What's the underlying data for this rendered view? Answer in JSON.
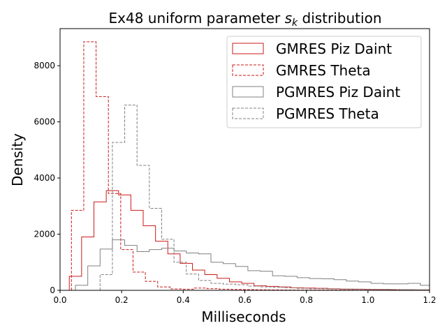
{
  "chart_data": {
    "type": "histogram-step",
    "title_text": "Ex48 uniform parameter ",
    "title_symbol": "s",
    "title_subscript": "k",
    "title_suffix": " distribution",
    "xlabel": "Milliseconds",
    "ylabel": "Density",
    "xlim": [
      0,
      1.2
    ],
    "ylim": [
      0,
      9320
    ],
    "xticks": [
      0.0,
      0.2,
      0.4,
      0.6,
      0.8,
      1.0,
      1.2
    ],
    "xtick_labels": [
      "0.0",
      "0.2",
      "0.4",
      "0.6",
      "0.8",
      "1.0",
      "1.2"
    ],
    "yticks": [
      0,
      2000,
      4000,
      6000,
      8000
    ],
    "ytick_labels": [
      "0",
      "2000",
      "4000",
      "6000",
      "8000"
    ],
    "grid": false,
    "legend_position": "top-right",
    "series": [
      {
        "name": "GMRES Piz Daint",
        "color": "#cc1a1a",
        "dash": "solid",
        "edges": [
          0.03,
          0.07,
          0.11,
          0.15,
          0.19,
          0.23,
          0.27,
          0.31,
          0.35,
          0.39,
          0.43,
          0.47,
          0.51,
          0.55,
          0.59,
          0.63,
          0.67,
          0.71,
          0.75,
          0.79,
          0.83,
          0.87,
          0.91,
          0.95,
          0.99,
          1.03,
          1.07,
          1.11,
          1.15,
          1.2
        ],
        "values": [
          500,
          1900,
          3150,
          3550,
          3400,
          2850,
          2300,
          1750,
          1300,
          960,
          720,
          560,
          430,
          300,
          250,
          160,
          140,
          120,
          90,
          80,
          70,
          55,
          45,
          40,
          35,
          30,
          25,
          20,
          15
        ]
      },
      {
        "name": "GMRES Theta",
        "color": "#cc1a1a",
        "dash": "dashed",
        "edges": [
          0.037,
          0.077,
          0.117,
          0.157,
          0.197,
          0.237,
          0.277,
          0.317,
          0.357,
          0.397,
          0.437,
          0.477,
          0.517,
          0.557,
          0.597,
          0.637,
          0.677,
          0.717,
          0.757,
          0.797,
          0.837,
          0.877,
          0.917,
          0.957,
          0.997,
          1.037,
          1.077,
          1.117,
          1.157,
          1.2
        ],
        "values": [
          2850,
          8850,
          6900,
          3450,
          1450,
          650,
          320,
          120,
          50,
          40,
          80,
          60,
          40,
          30,
          25,
          20,
          15,
          12,
          10,
          10,
          10,
          8,
          8,
          6,
          6,
          5,
          5,
          5,
          5
        ]
      },
      {
        "name": "PGMRES Piz Daint",
        "color": "#808080",
        "dash": "solid",
        "edges": [
          0.05,
          0.09,
          0.13,
          0.17,
          0.21,
          0.25,
          0.29,
          0.33,
          0.37,
          0.41,
          0.45,
          0.49,
          0.53,
          0.57,
          0.61,
          0.65,
          0.69,
          0.73,
          0.77,
          0.81,
          0.85,
          0.89,
          0.93,
          0.97,
          1.01,
          1.05,
          1.09,
          1.13,
          1.17,
          1.2
        ],
        "values": [
          180,
          870,
          1470,
          1800,
          1600,
          1380,
          1450,
          1500,
          1400,
          1330,
          1300,
          1000,
          950,
          850,
          700,
          680,
          520,
          500,
          450,
          420,
          410,
          380,
          330,
          300,
          250,
          230,
          230,
          250,
          180
        ]
      },
      {
        "name": "PGMRES Theta",
        "color": "#808080",
        "dash": "dashed",
        "edges": [
          0.13,
          0.17,
          0.21,
          0.25,
          0.29,
          0.33,
          0.37,
          0.41,
          0.45,
          0.49,
          0.53,
          0.57,
          0.61,
          0.65,
          0.69,
          0.73,
          0.77,
          0.81,
          0.85,
          0.89,
          0.93,
          0.97,
          1.01,
          1.05,
          1.09,
          1.13,
          1.17,
          1.2
        ],
        "values": [
          560,
          5270,
          6600,
          4450,
          2920,
          1820,
          1000,
          580,
          350,
          250,
          220,
          200,
          150,
          120,
          110,
          90,
          70,
          60,
          55,
          50,
          45,
          40,
          35,
          30,
          25,
          20,
          15
        ]
      }
    ]
  }
}
